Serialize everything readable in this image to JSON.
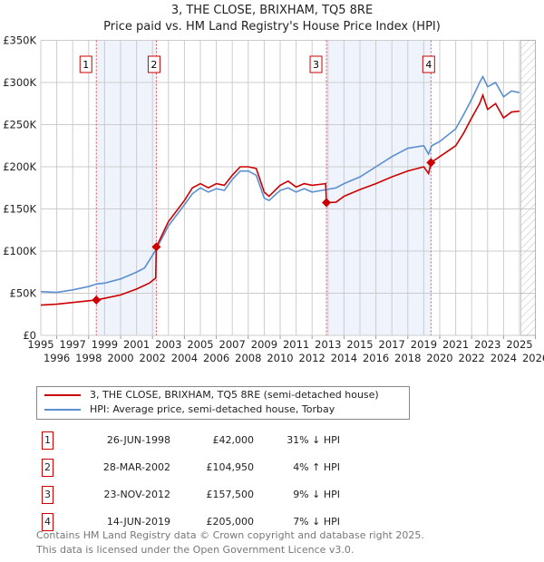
{
  "title": "3, THE CLOSE, BRIXHAM, TQ5 8RE",
  "subtitle": "Price paid vs. HM Land Registry's House Price Index (HPI)",
  "chart_data": {
    "type": "line",
    "xlim": [
      1995,
      2026
    ],
    "ylim": [
      0,
      350000
    ],
    "x_ticks": [
      "1995",
      "1996",
      "1997",
      "1998",
      "1999",
      "2000",
      "2001",
      "2002",
      "2003",
      "2004",
      "2005",
      "2006",
      "2007",
      "2008",
      "2009",
      "2010",
      "2011",
      "2012",
      "2013",
      "2014",
      "2015",
      "2016",
      "2017",
      "2018",
      "2019",
      "2020",
      "2021",
      "2022",
      "2023",
      "2024",
      "2025",
      "2026"
    ],
    "y_ticks": [
      {
        "v": 0,
        "label": "£0"
      },
      {
        "v": 50000,
        "label": "£50K"
      },
      {
        "v": 100000,
        "label": "£100K"
      },
      {
        "v": 150000,
        "label": "£150K"
      },
      {
        "v": 200000,
        "label": "£200K"
      },
      {
        "v": 250000,
        "label": "£250K"
      },
      {
        "v": 300000,
        "label": "£300K"
      },
      {
        "v": 350000,
        "label": "£350K"
      }
    ],
    "forecast_from": 2025.1,
    "series": [
      {
        "name": "3, THE CLOSE, BRIXHAM, TQ5 8RE (semi-detached house)",
        "color": "#cc0000",
        "points": [
          [
            1995,
            36000
          ],
          [
            1996,
            37000
          ],
          [
            1997,
            39000
          ],
          [
            1998.48,
            42000
          ],
          [
            1999,
            44000
          ],
          [
            2000,
            48000
          ],
          [
            2001,
            55000
          ],
          [
            2001.8,
            62000
          ],
          [
            2002.2,
            68000
          ],
          [
            2002.24,
            104950
          ],
          [
            2003,
            135000
          ],
          [
            2004,
            160000
          ],
          [
            2004.5,
            175000
          ],
          [
            2005,
            180000
          ],
          [
            2005.5,
            175000
          ],
          [
            2006,
            180000
          ],
          [
            2006.5,
            178000
          ],
          [
            2007,
            190000
          ],
          [
            2007.5,
            200000
          ],
          [
            2008,
            200000
          ],
          [
            2008.5,
            198000
          ],
          [
            2009,
            170000
          ],
          [
            2009.3,
            165000
          ],
          [
            2010,
            178000
          ],
          [
            2010.5,
            183000
          ],
          [
            2011,
            176000
          ],
          [
            2011.5,
            180000
          ],
          [
            2012,
            178000
          ],
          [
            2012.85,
            180000
          ],
          [
            2012.9,
            157500
          ],
          [
            2013.5,
            158000
          ],
          [
            2014,
            165000
          ],
          [
            2015,
            173000
          ],
          [
            2016,
            180000
          ],
          [
            2017,
            188000
          ],
          [
            2018,
            195000
          ],
          [
            2019,
            200000
          ],
          [
            2019.3,
            192000
          ],
          [
            2019.45,
            205000
          ],
          [
            2020,
            212000
          ],
          [
            2021,
            225000
          ],
          [
            2021.5,
            240000
          ],
          [
            2022,
            258000
          ],
          [
            2022.5,
            275000
          ],
          [
            2022.7,
            285000
          ],
          [
            2023,
            268000
          ],
          [
            2023.5,
            275000
          ],
          [
            2024,
            258000
          ],
          [
            2024.5,
            265000
          ],
          [
            2025,
            266000
          ]
        ]
      },
      {
        "name": "HPI: Average price, semi-detached house, Torbay",
        "color": "#5b8fd0",
        "points": [
          [
            1995,
            52000
          ],
          [
            1996,
            51000
          ],
          [
            1997,
            54000
          ],
          [
            1998,
            58000
          ],
          [
            1998.5,
            61000
          ],
          [
            1999,
            62000
          ],
          [
            2000,
            67000
          ],
          [
            2001,
            75000
          ],
          [
            2001.5,
            80000
          ],
          [
            2002.2,
            101000
          ],
          [
            2003,
            130000
          ],
          [
            2004,
            155000
          ],
          [
            2004.5,
            168000
          ],
          [
            2005,
            175000
          ],
          [
            2005.5,
            170000
          ],
          [
            2006,
            174000
          ],
          [
            2006.5,
            172000
          ],
          [
            2007,
            185000
          ],
          [
            2007.5,
            195000
          ],
          [
            2008,
            195000
          ],
          [
            2008.5,
            190000
          ],
          [
            2009,
            163000
          ],
          [
            2009.3,
            160000
          ],
          [
            2010,
            172000
          ],
          [
            2010.5,
            175000
          ],
          [
            2011,
            170000
          ],
          [
            2011.5,
            174000
          ],
          [
            2012,
            170000
          ],
          [
            2012.9,
            173000
          ],
          [
            2013.5,
            175000
          ],
          [
            2014,
            180000
          ],
          [
            2015,
            188000
          ],
          [
            2016,
            200000
          ],
          [
            2017,
            212000
          ],
          [
            2018,
            222000
          ],
          [
            2019,
            225000
          ],
          [
            2019.3,
            215000
          ],
          [
            2019.5,
            225000
          ],
          [
            2020,
            230000
          ],
          [
            2021,
            245000
          ],
          [
            2021.5,
            262000
          ],
          [
            2022,
            280000
          ],
          [
            2022.5,
            300000
          ],
          [
            2022.7,
            307000
          ],
          [
            2023,
            295000
          ],
          [
            2023.5,
            300000
          ],
          [
            2024,
            283000
          ],
          [
            2024.5,
            290000
          ],
          [
            2025,
            288000
          ]
        ]
      }
    ],
    "sales": [
      {
        "n": "1",
        "year": 1998.48,
        "price": 42000,
        "date": "26-JUN-1998",
        "price_label": "£42,000",
        "hpi": "31% ↓ HPI"
      },
      {
        "n": "2",
        "year": 2002.24,
        "price": 104950,
        "date": "28-MAR-2002",
        "price_label": "£104,950",
        "hpi": "4% ↑ HPI"
      },
      {
        "n": "3",
        "year": 2012.9,
        "price": 157500,
        "date": "23-NOV-2012",
        "price_label": "£157,500",
        "hpi": "9% ↓ HPI"
      },
      {
        "n": "4",
        "year": 2019.45,
        "price": 205000,
        "date": "14-JUN-2019",
        "price_label": "£205,000",
        "hpi": "7% ↓ HPI"
      }
    ]
  },
  "legend": {
    "red": "3, THE CLOSE, BRIXHAM, TQ5 8RE (semi-detached house)",
    "blue": "HPI: Average price, semi-detached house, Torbay"
  },
  "footer": {
    "line1": "Contains HM Land Registry data © Crown copyright and database right 2025.",
    "line2": "This data is licensed under the Open Government Licence v3.0."
  }
}
